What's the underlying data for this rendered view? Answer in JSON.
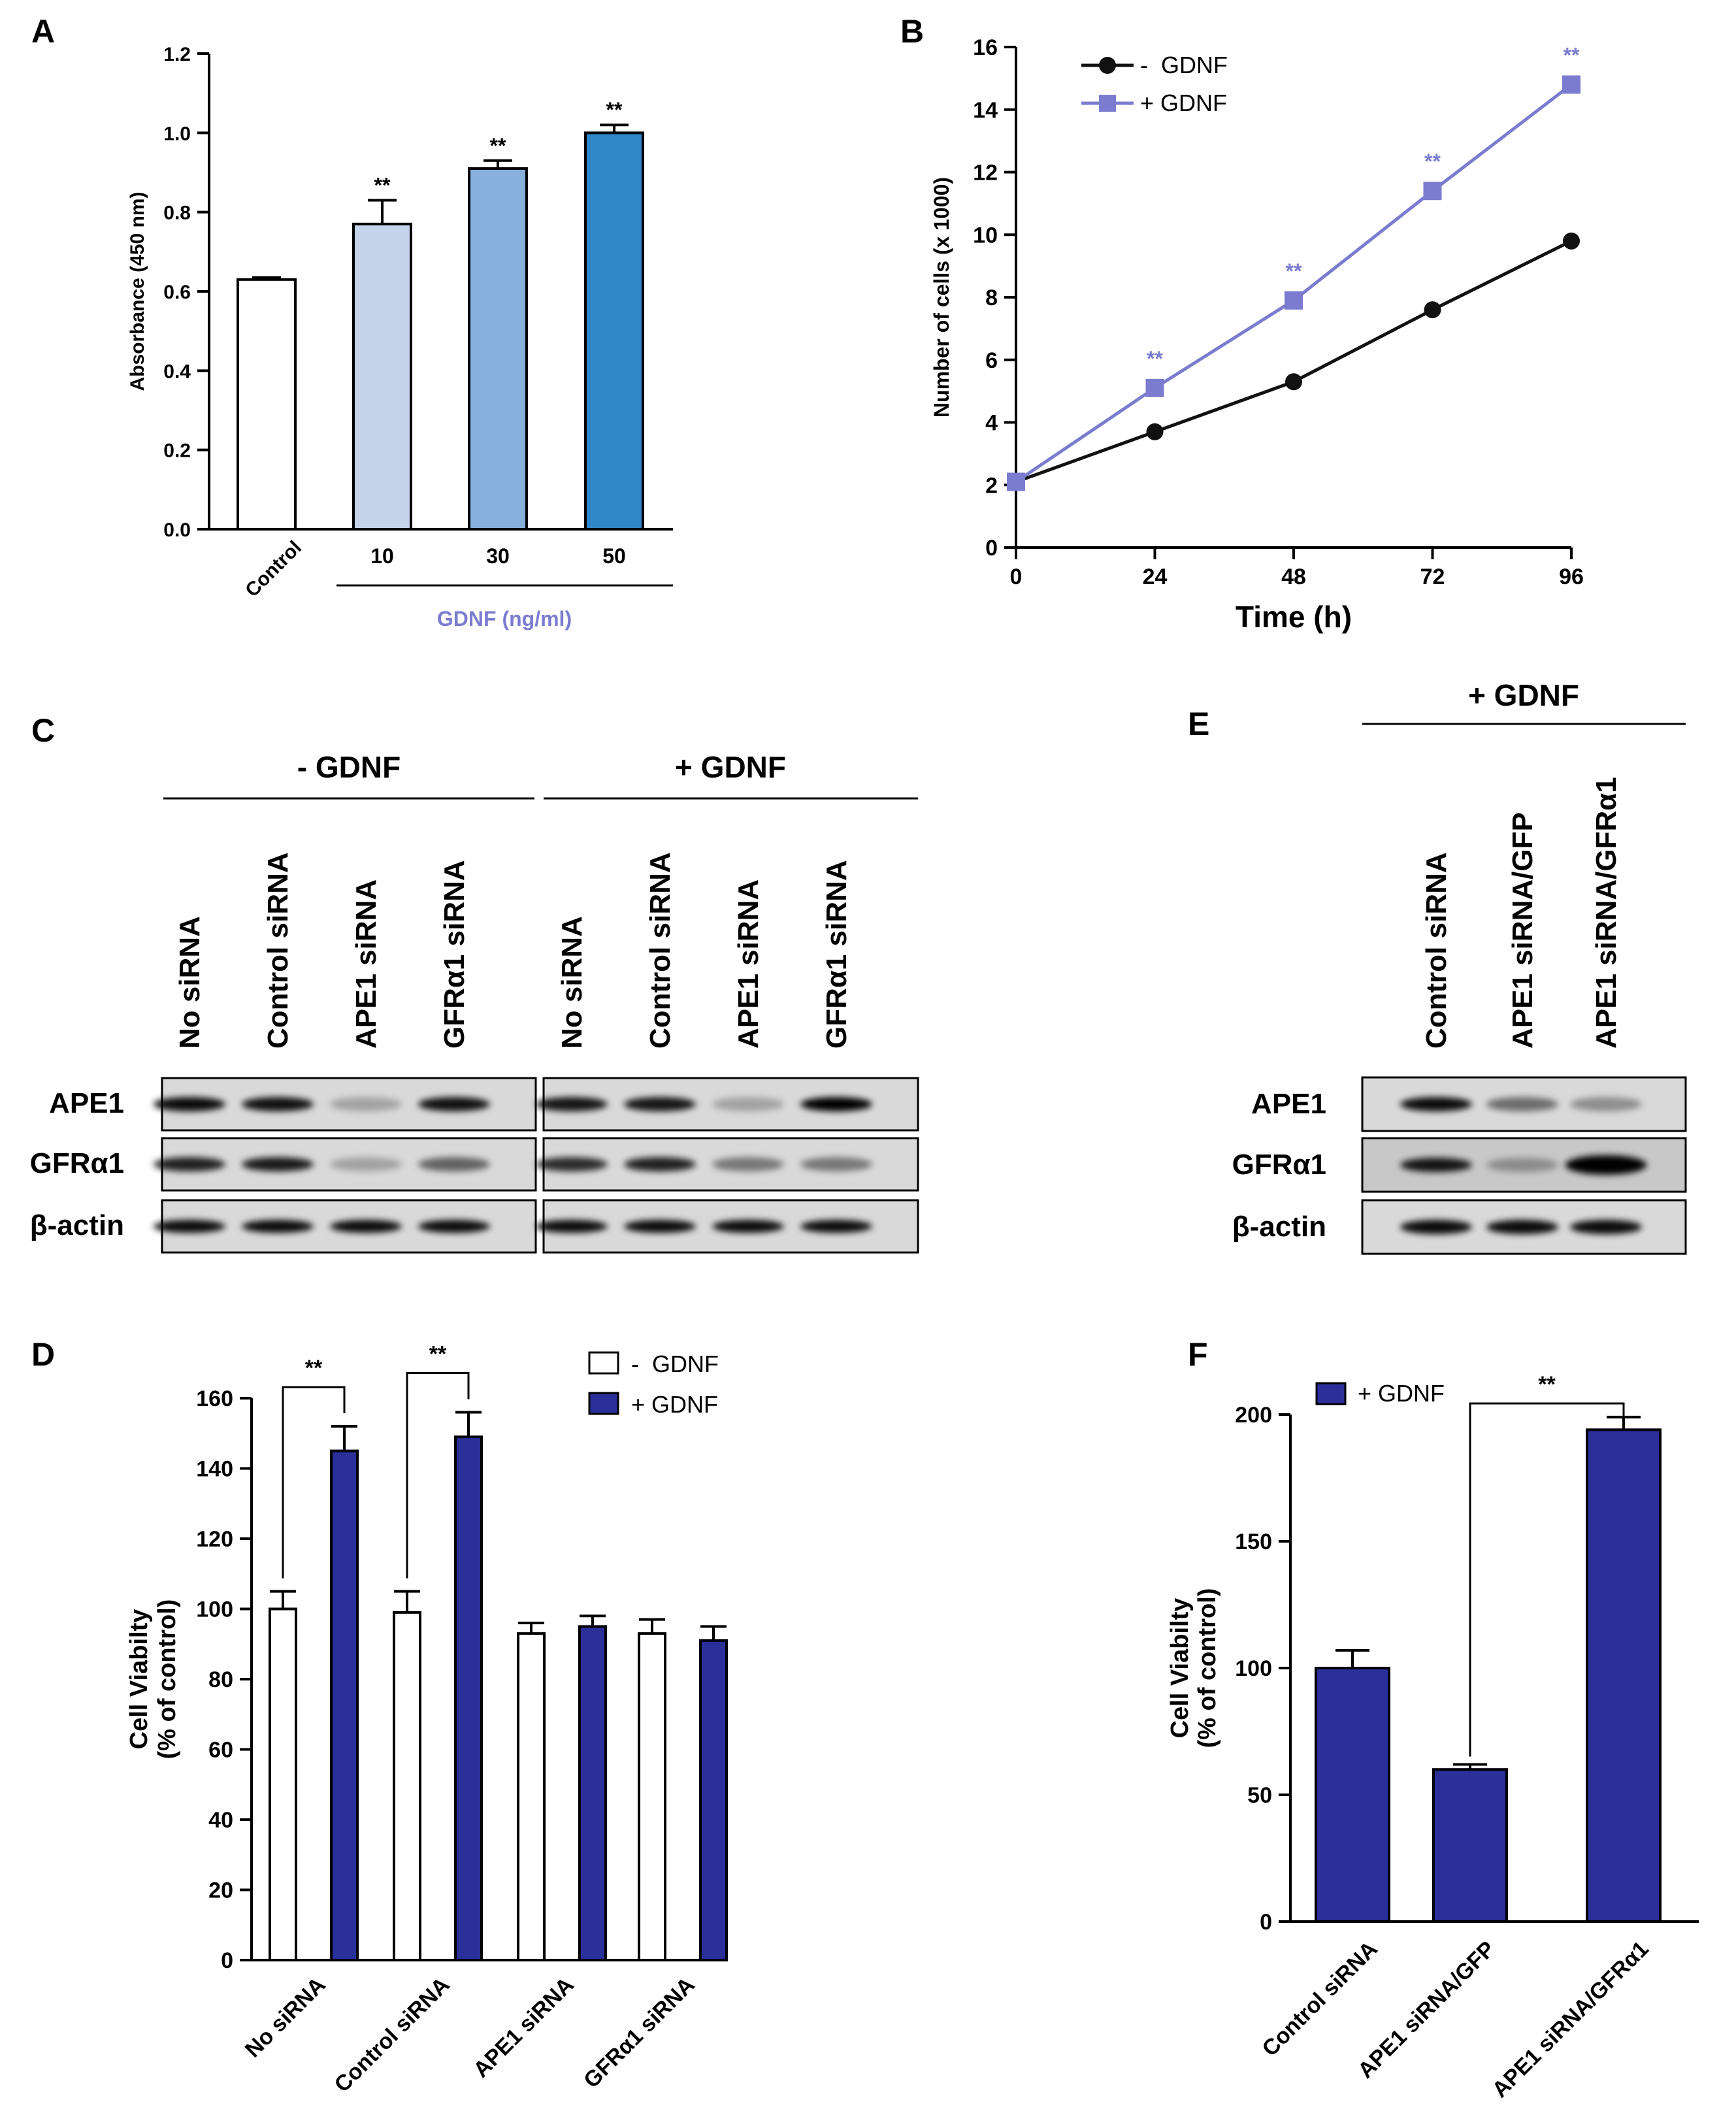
{
  "colors": {
    "axis": "#000000",
    "gdnf_purple": "#7b7bd0",
    "minus_line": "#111111",
    "d_plus_fill": "#2a2f9a",
    "f_fill": "#2a2f9a",
    "a_bars": [
      "#ffffff",
      "#c5d3ea",
      "#87b0dc",
      "#2f86c9"
    ],
    "blot_bg": "#d9d9d9"
  },
  "panels": {
    "A": "A",
    "B": "B",
    "C": "C",
    "D": "D",
    "E": "E",
    "F": "F"
  },
  "chart_data": [
    {
      "id": "A",
      "type": "bar",
      "categories": [
        "Control",
        "10",
        "30",
        "50"
      ],
      "values": [
        0.63,
        0.77,
        0.91,
        1.0
      ],
      "errors": [
        0.005,
        0.06,
        0.02,
        0.02
      ],
      "significance": [
        "",
        "**",
        "**",
        "**"
      ],
      "ylabel": "Absorbance (450 nm)",
      "group_label": "GDNF (ng/ml)",
      "ylim": [
        0,
        1.2
      ],
      "yticks": [
        "0.0",
        "0.2",
        "0.4",
        "0.6",
        "0.8",
        "1.0",
        "1.2"
      ]
    },
    {
      "id": "B",
      "type": "line",
      "x": [
        0,
        24,
        48,
        72,
        96
      ],
      "series": [
        {
          "name": "-  GDNF",
          "values": [
            2.1,
            3.7,
            5.3,
            7.6,
            9.8
          ],
          "marker": "circle",
          "color": "#111111"
        },
        {
          "name": "+ GDNF",
          "values": [
            2.1,
            5.1,
            7.9,
            11.4,
            14.8
          ],
          "marker": "square",
          "color": "#7b7bd0"
        }
      ],
      "significance_x": [
        24,
        48,
        72,
        96
      ],
      "significance_label": "**",
      "xlabel": "Time (h)",
      "ylabel": "Number of cells (x 1000)",
      "xticks": [
        "0",
        "24",
        "48",
        "72",
        "96"
      ],
      "yticks": [
        "0",
        "2",
        "4",
        "6",
        "8",
        "10",
        "12",
        "14",
        "16"
      ],
      "xlim": [
        0,
        96
      ],
      "ylim": [
        0,
        16
      ]
    },
    {
      "id": "D",
      "type": "bar",
      "categories": [
        "No siRNA",
        "Control siRNA",
        "APE1 siRNA",
        "GFRα1 siRNA"
      ],
      "series": [
        {
          "name": "-  GDNF",
          "values": [
            100,
            99,
            93,
            93
          ],
          "errors": [
            5,
            6,
            3,
            4
          ]
        },
        {
          "name": "+ GDNF",
          "values": [
            145,
            149,
            95,
            91
          ],
          "errors": [
            7,
            7,
            3,
            4
          ]
        }
      ],
      "significance": [
        "**",
        "**",
        "",
        ""
      ],
      "ylabel": "Cell Viabilty",
      "ylabel2": "(% of control)",
      "ylim": [
        0,
        160
      ],
      "yticks": [
        "0",
        "20",
        "40",
        "60",
        "80",
        "100",
        "120",
        "140",
        "160"
      ]
    },
    {
      "id": "F",
      "type": "bar",
      "categories": [
        "Control siRNA",
        "APE1 siRNA/GFP",
        "APE1 siRNA/GFRα1"
      ],
      "values": [
        100,
        60,
        194
      ],
      "errors": [
        7,
        2,
        5
      ],
      "legend": "+ GDNF",
      "significance_label": "**",
      "ylabel": "Cell Viabilty",
      "ylabel2": "(% of control)",
      "ylim": [
        0,
        200
      ],
      "yticks": [
        "0",
        "50",
        "100",
        "150",
        "200"
      ]
    }
  ],
  "blotC": {
    "groups": [
      "- GDNF",
      "+ GDNF"
    ],
    "lanes": [
      "No siRNA",
      "Control siRNA",
      "APE1 siRNA",
      "GFRα1 siRNA"
    ],
    "rows": [
      "APE1",
      "GFRα1",
      "β-actin"
    ],
    "intensity": {
      "APE1": [
        [
          0.95,
          0.92,
          0.25,
          0.92
        ],
        [
          0.9,
          0.9,
          0.25,
          1.0
        ]
      ],
      "GFRα1": [
        [
          0.85,
          0.88,
          0.25,
          0.55
        ],
        [
          0.8,
          0.85,
          0.45,
          0.45
        ]
      ],
      "β-actin": [
        [
          0.95,
          0.95,
          0.95,
          0.95
        ],
        [
          0.95,
          0.95,
          0.95,
          0.95
        ]
      ]
    }
  },
  "blotE": {
    "group": "+ GDNF",
    "lanes": [
      "Control siRNA",
      "APE1 siRNA/GFP",
      "APE1 siRNA/GFRα1"
    ],
    "rows": [
      "APE1",
      "GFRα1",
      "β-actin"
    ],
    "intensity": {
      "APE1": [
        0.95,
        0.5,
        0.35
      ],
      "GFRα1": [
        0.9,
        0.3,
        1.0
      ],
      "β-actin": [
        0.95,
        0.95,
        0.95
      ]
    }
  }
}
